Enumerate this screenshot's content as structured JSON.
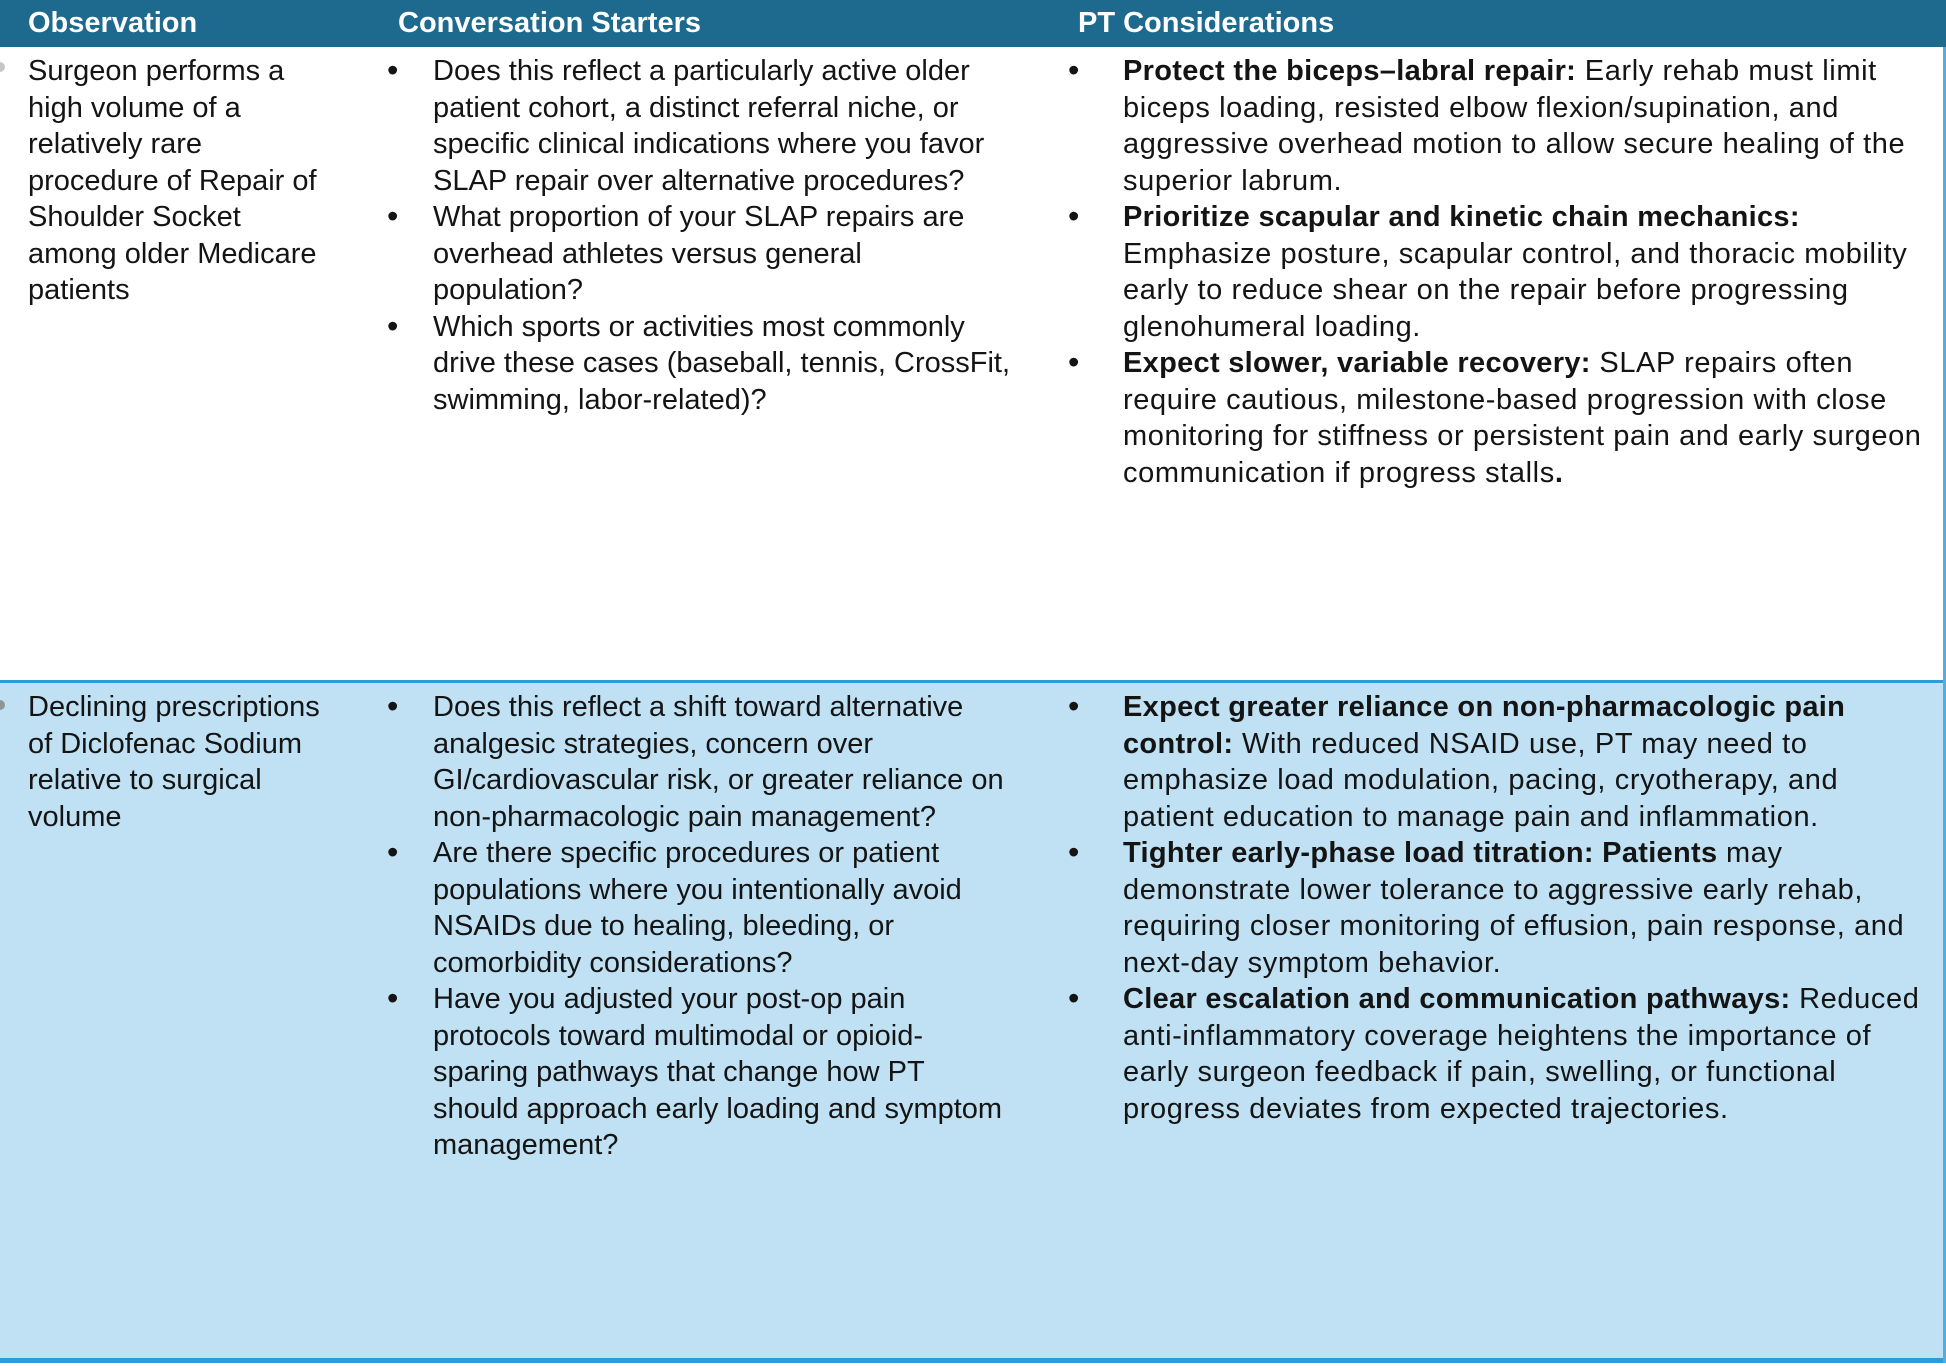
{
  "colors": {
    "header_bg": "#1D6A8E",
    "header_text": "#FFFFFF",
    "alt_row_bg": "#BFE1F3",
    "border_blue": "#2F9CD9",
    "border_blue_light": "#55ADDE",
    "body_text": "#141414"
  },
  "header": {
    "columns": [
      "Observation",
      "Conversation Starters",
      "PT Considerations"
    ]
  },
  "rows": [
    {
      "observation": "Surgeon performs a high volume of a relatively rare procedure of Repair of Shoulder Socket among older Medicare patients",
      "conversation_starters": [
        "Does this reflect a particularly active older patient cohort, a distinct referral niche, or specific clinical indications where you favor SLAP repair over alternative procedures?",
        "What proportion of your SLAP repairs are overhead athletes versus general population?",
        "Which sports or activities most commonly drive these cases (baseball, tennis, CrossFit, swimming, labor-related)?"
      ],
      "pt_considerations": [
        {
          "lead": "Protect the biceps–labral repair:",
          "body": "Early rehab must limit biceps loading, resisted elbow flexion/supination, and aggressive overhead motion to allow secure healing of the superior labrum.",
          "bold_tail": ""
        },
        {
          "lead": "Prioritize scapular and kinetic chain mechanics:",
          "body": "Emphasize posture, scapular control, and thoracic mobility early to reduce shear on the repair before progressing glenohumeral loading.",
          "bold_tail": ""
        },
        {
          "lead": "Expect slower, variable recovery:",
          "body": "SLAP repairs often require cautious, milestone-based progression with close monitoring for stiffness or persistent pain and early surgeon communication if progress stalls",
          "bold_tail": "."
        }
      ]
    },
    {
      "observation": "Declining prescriptions of Diclofenac Sodium relative to surgical volume",
      "conversation_starters": [
        "Does this reflect a shift toward alternative analgesic strategies, concern over GI/cardiovascular risk, or greater reliance on non-pharmacologic pain management?",
        "Are there specific procedures or patient populations where you intentionally avoid NSAIDs due to healing, bleeding, or comorbidity considerations?",
        "Have you adjusted your post-op pain protocols toward multimodal or opioid-sparing pathways that change how PT should approach early loading and symptom management?"
      ],
      "pt_considerations": [
        {
          "lead": "Expect greater reliance on non-pharmacologic pain control:",
          "body": "With reduced NSAID use, PT may need to emphasize load modulation, pacing, cryotherapy, and patient education to manage pain and inflammation.",
          "bold_tail": ""
        },
        {
          "lead": "Tighter early-phase load titration: Patients",
          "body": "may demonstrate lower tolerance to aggressive early rehab, requiring closer monitoring of effusion, pain response, and next-day symptom behavior.",
          "bold_tail": ""
        },
        {
          "lead": "Clear escalation and communication pathways:",
          "body": "Reduced anti-inflammatory coverage heightens the importance of early surgeon feedback if pain, swelling, or functional progress deviates from expected trajectories.",
          "bold_tail": ""
        }
      ]
    }
  ]
}
